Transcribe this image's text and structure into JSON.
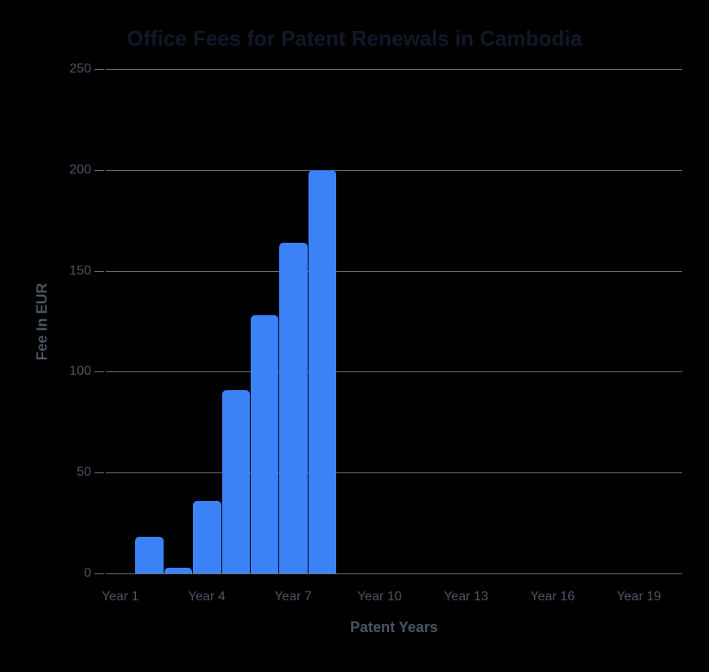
{
  "chart_data": {
    "type": "bar",
    "title": "Office Fees for Patent Renewals in Cambodia",
    "xlabel": "Patent Years",
    "ylabel": "Fee In EUR",
    "ylim": [
      0,
      250
    ],
    "yticks": [
      0,
      50,
      100,
      150,
      200,
      250
    ],
    "grid": true,
    "legend": null,
    "categories": [
      "Year 1",
      "Year 2",
      "Year 3",
      "Year 4",
      "Year 5",
      "Year 6",
      "Year 7",
      "Year 8",
      "Year 9",
      "Year 10",
      "Year 11",
      "Year 12",
      "Year 13",
      "Year 14",
      "Year 15",
      "Year 16",
      "Year 17",
      "Year 18",
      "Year 19",
      "Year 20"
    ],
    "visible_xtick_labels": [
      "Year 1",
      "Year 4",
      "Year 7",
      "Year 10",
      "Year 13",
      "Year 16",
      "Year 19"
    ],
    "series": [
      {
        "name": "Fee In EUR",
        "color": "#3b82f6",
        "values": [
          0,
          18,
          3,
          36,
          91,
          128,
          164,
          200,
          0,
          0,
          0,
          0,
          0,
          0,
          0,
          0,
          0,
          0,
          0,
          0
        ]
      }
    ]
  },
  "colors": {
    "bar": "#3b82f6",
    "grid": "#6b7280",
    "text": "#4b5563",
    "title": "#111827",
    "background": "#000000"
  }
}
